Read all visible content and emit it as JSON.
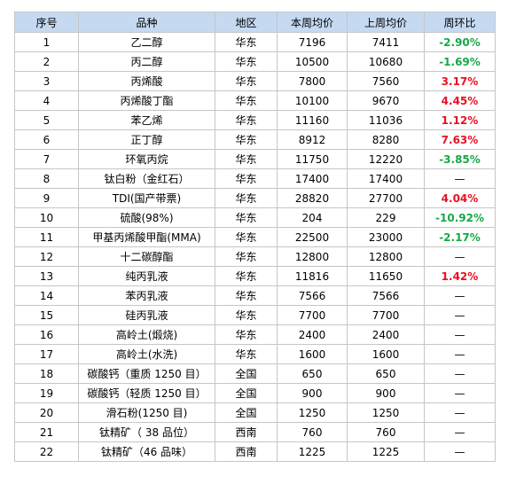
{
  "table": {
    "headers": {
      "no": "序号",
      "name": "品种",
      "region": "地区",
      "current": "本周均价",
      "previous": "上周均价",
      "change": "周环比"
    },
    "rows": [
      {
        "no": "1",
        "name": "乙二醇",
        "region": "华东",
        "current": "7196",
        "previous": "7411",
        "change": "-2.90%",
        "trend": "down"
      },
      {
        "no": "2",
        "name": "丙二醇",
        "region": "华东",
        "current": "10500",
        "previous": "10680",
        "change": "-1.69%",
        "trend": "down"
      },
      {
        "no": "3",
        "name": "丙烯酸",
        "region": "华东",
        "current": "7800",
        "previous": "7560",
        "change": "3.17%",
        "trend": "up"
      },
      {
        "no": "4",
        "name": "丙烯酸丁酯",
        "region": "华东",
        "current": "10100",
        "previous": "9670",
        "change": "4.45%",
        "trend": "up"
      },
      {
        "no": "5",
        "name": "苯乙烯",
        "region": "华东",
        "current": "11160",
        "previous": "11036",
        "change": "1.12%",
        "trend": "up"
      },
      {
        "no": "6",
        "name": "正丁醇",
        "region": "华东",
        "current": "8912",
        "previous": "8280",
        "change": "7.63%",
        "trend": "up"
      },
      {
        "no": "7",
        "name": "环氧丙烷",
        "region": "华东",
        "current": "11750",
        "previous": "12220",
        "change": "-3.85%",
        "trend": "down"
      },
      {
        "no": "8",
        "name": "钛白粉（金红石）",
        "region": "华东",
        "current": "17400",
        "previous": "17400",
        "change": "—",
        "trend": "flat"
      },
      {
        "no": "9",
        "name": "TDI(国产带票)",
        "region": "华东",
        "current": "28820",
        "previous": "27700",
        "change": "4.04%",
        "trend": "up"
      },
      {
        "no": "10",
        "name": "硫酸(98%)",
        "region": "华东",
        "current": "204",
        "previous": "229",
        "change": "-10.92%",
        "trend": "down"
      },
      {
        "no": "11",
        "name": "甲基丙烯酸甲酯(MMA)",
        "region": "华东",
        "current": "22500",
        "previous": "23000",
        "change": "-2.17%",
        "trend": "down"
      },
      {
        "no": "12",
        "name": "十二碳醇酯",
        "region": "华东",
        "current": "12800",
        "previous": "12800",
        "change": "—",
        "trend": "flat"
      },
      {
        "no": "13",
        "name": "纯丙乳液",
        "region": "华东",
        "current": "11816",
        "previous": "11650",
        "change": "1.42%",
        "trend": "up"
      },
      {
        "no": "14",
        "name": "苯丙乳液",
        "region": "华东",
        "current": "7566",
        "previous": "7566",
        "change": "—",
        "trend": "flat"
      },
      {
        "no": "15",
        "name": "硅丙乳液",
        "region": "华东",
        "current": "7700",
        "previous": "7700",
        "change": "—",
        "trend": "flat"
      },
      {
        "no": "16",
        "name": "高岭土(煅烧)",
        "region": "华东",
        "current": "2400",
        "previous": "2400",
        "change": "—",
        "trend": "flat"
      },
      {
        "no": "17",
        "name": "高岭土(水洗)",
        "region": "华东",
        "current": "1600",
        "previous": "1600",
        "change": "—",
        "trend": "flat"
      },
      {
        "no": "18",
        "name": "碳酸钙（重质 1250 目）",
        "region": "全国",
        "current": "650",
        "previous": "650",
        "change": "—",
        "trend": "flat"
      },
      {
        "no": "19",
        "name": "碳酸钙（轻质 1250 目）",
        "region": "全国",
        "current": "900",
        "previous": "900",
        "change": "—",
        "trend": "flat"
      },
      {
        "no": "20",
        "name": "滑石粉(1250 目)",
        "region": "全国",
        "current": "1250",
        "previous": "1250",
        "change": "—",
        "trend": "flat"
      },
      {
        "no": "21",
        "name": "钛精矿（ 38 品位）",
        "region": "西南",
        "current": "760",
        "previous": "760",
        "change": "—",
        "trend": "flat"
      },
      {
        "no": "22",
        "name": "钛精矿（46 品味）",
        "region": "西南",
        "current": "1225",
        "previous": "1225",
        "change": "—",
        "trend": "flat"
      }
    ]
  },
  "colors": {
    "header_bg": "#c5d9f1",
    "up": "#e81123",
    "down": "#17a845",
    "border": "#c6c6c6"
  }
}
